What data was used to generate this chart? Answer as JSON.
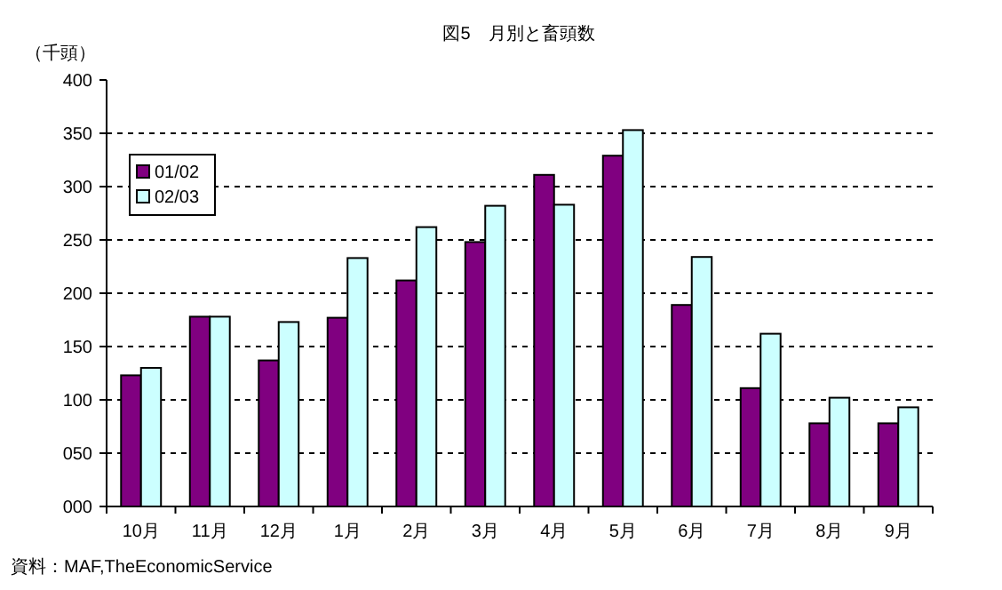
{
  "chart_data": {
    "type": "bar",
    "title": "図5　月別と畜頭数",
    "ylabel": "（千頭）",
    "categories": [
      "10月",
      "11月",
      "12月",
      "1月",
      "2月",
      "3月",
      "4月",
      "5月",
      "6月",
      "7月",
      "8月",
      "9月"
    ],
    "series": [
      {
        "name": "01/02",
        "color": "#800080",
        "values": [
          123,
          178,
          137,
          177,
          212,
          248,
          311,
          329,
          189,
          111,
          78,
          78
        ]
      },
      {
        "name": "02/03",
        "color": "#ccffff",
        "values": [
          130,
          178,
          173,
          233,
          262,
          282,
          283,
          353,
          234,
          162,
          102,
          93
        ]
      }
    ],
    "ylim": [
      0,
      400
    ],
    "yticks": [
      {
        "value": 0,
        "label": "000"
      },
      {
        "value": 50,
        "label": "050"
      },
      {
        "value": 100,
        "label": "100"
      },
      {
        "value": 150,
        "label": "150"
      },
      {
        "value": 200,
        "label": "200"
      },
      {
        "value": 250,
        "label": "250"
      },
      {
        "value": 300,
        "label": "300"
      },
      {
        "value": 350,
        "label": "350"
      },
      {
        "value": 400,
        "label": "400"
      }
    ],
    "grid": "y",
    "legend": "top left",
    "annotations": [
      "資料：MAF,TheEconomicService"
    ]
  }
}
